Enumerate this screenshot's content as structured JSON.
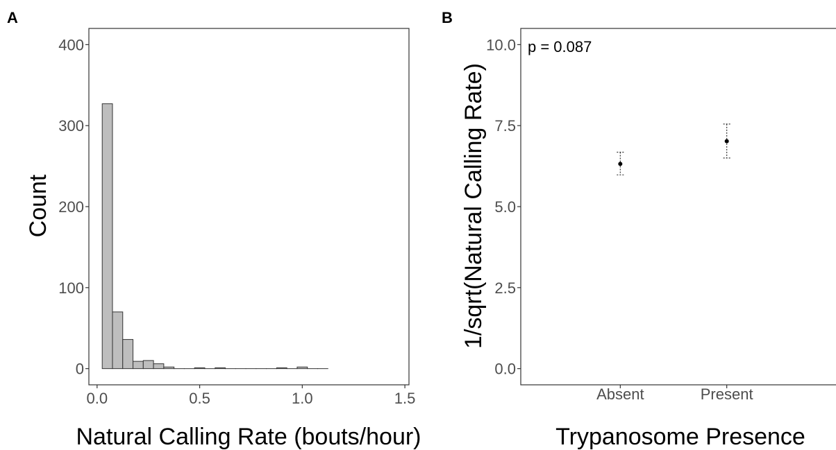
{
  "chart_data": [
    {
      "panel_label": "A",
      "type": "bar",
      "subtype": "histogram",
      "xlabel": "Natural Calling Rate (bouts/hour)",
      "ylabel": "Count",
      "xlim": [
        -0.04,
        1.52
      ],
      "ylim": [
        -20,
        420
      ],
      "x_ticks": [
        0.0,
        0.5,
        1.0,
        1.5
      ],
      "x_tick_labels": [
        "0.0",
        "0.5",
        "1.0",
        "1.5"
      ],
      "y_ticks": [
        0,
        100,
        200,
        300,
        400
      ],
      "y_tick_labels": [
        "0",
        "100",
        "200",
        "300",
        "400"
      ],
      "bin_width": 0.05,
      "bin_start": 0.025,
      "values": [
        327,
        70,
        36,
        9,
        10,
        6,
        2,
        0,
        0,
        1,
        0,
        1,
        0,
        0,
        0,
        0,
        0,
        1,
        0,
        2,
        0,
        0
      ],
      "grid": false,
      "fill_color": "#bebebe"
    },
    {
      "panel_label": "B",
      "type": "scatter",
      "subtype": "point-with-error-bars",
      "xlabel": "Trypanosome Presence",
      "ylabel": "1/sqrt(Natural Calling Rate)",
      "categories": [
        "Absent",
        "Present"
      ],
      "ylim": [
        -0.5,
        10.5
      ],
      "y_ticks": [
        0.0,
        2.5,
        5.0,
        7.5,
        10.0
      ],
      "y_tick_labels": [
        "0.0",
        "2.5",
        "5.0",
        "7.5",
        "10.0"
      ],
      "points": [
        {
          "category": "Absent",
          "mean": 6.32,
          "lower": 5.98,
          "upper": 6.68
        },
        {
          "category": "Present",
          "mean": 7.02,
          "lower": 6.5,
          "upper": 7.55
        }
      ],
      "annotation": "p = 0.087",
      "grid": false
    }
  ]
}
